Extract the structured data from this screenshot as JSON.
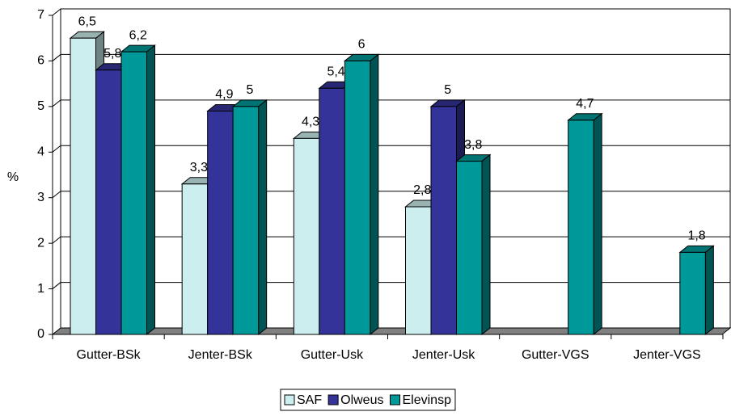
{
  "chart_data": {
    "type": "bar3d",
    "yaxis_label": "%",
    "categories": [
      "Gutter-BSk",
      "Jenter-BSk",
      "Gutter-Usk",
      "Jenter-Usk",
      "Gutter-VGS",
      "Jenter-VGS"
    ],
    "series": [
      {
        "name": "SAF",
        "color": "#cceeee",
        "values": [
          6.5,
          3.3,
          4.3,
          2.8,
          null,
          null
        ],
        "value_labels": [
          "6,5",
          "3,3",
          "4,3",
          "2,8",
          null,
          null
        ]
      },
      {
        "name": "Olweus",
        "color": "#333399",
        "values": [
          5.8,
          4.9,
          5.4,
          5,
          null,
          null
        ],
        "value_labels": [
          "5,8",
          "4,9",
          "5,4",
          "5",
          null,
          null
        ]
      },
      {
        "name": "Elevinsp",
        "color": "#009999",
        "values": [
          6.2,
          5,
          6,
          3.8,
          4.7,
          1.8
        ],
        "value_labels": [
          "6,2",
          "5",
          "6",
          "3,8",
          "4,7",
          "1,8"
        ]
      }
    ],
    "ylim": [
      0,
      7
    ],
    "yticks": [
      0,
      1,
      2,
      3,
      4,
      5,
      6,
      7
    ],
    "grid": true,
    "legend": "bottom"
  }
}
